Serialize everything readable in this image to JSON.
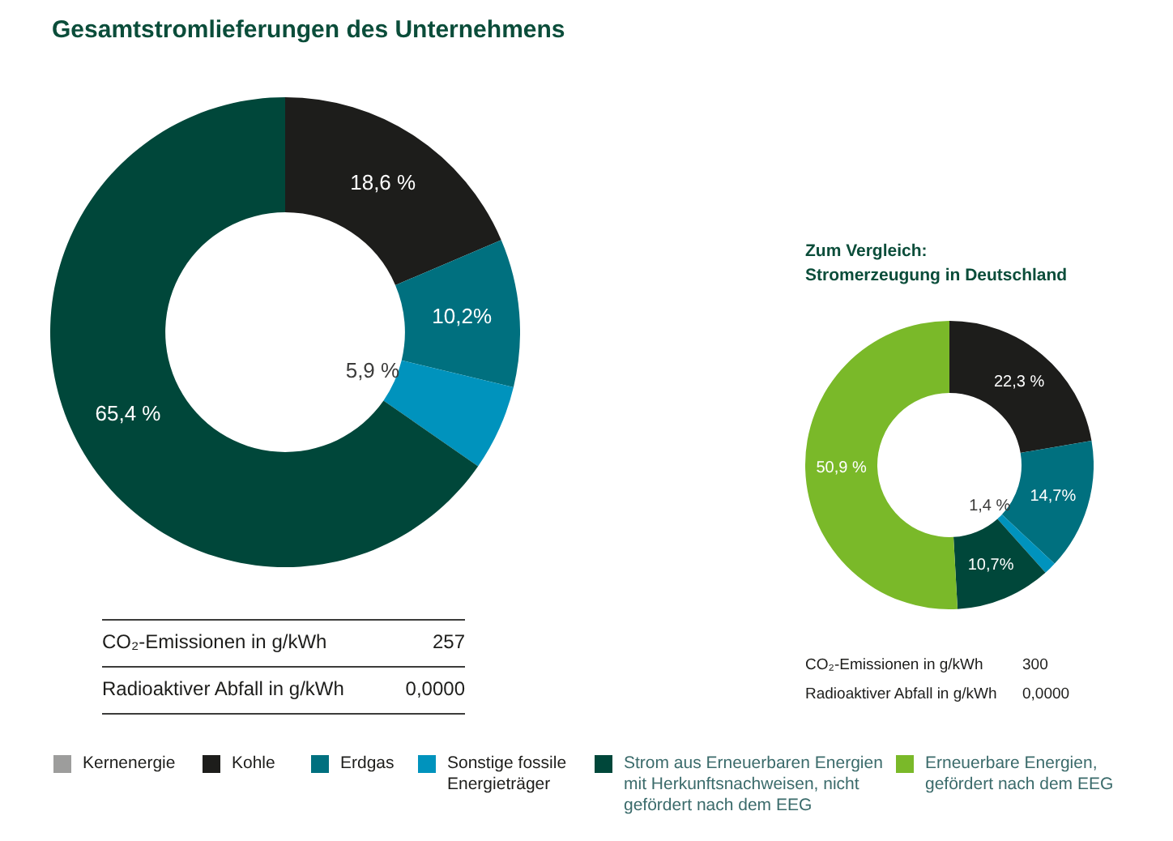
{
  "chart_data": [
    {
      "type": "donut",
      "title": "Gesamtstromlieferungen des Unternehmens",
      "categories": [
        "Kernenergie",
        "Kohle",
        "Erdgas",
        "Sonstige fossile Energieträger",
        "Strom aus Erneuerbaren Energien mit Herkunftsnachweisen, nicht gefördert nach dem EEG",
        "Erneuerbare Energien, gefördert nach dem EEG"
      ],
      "values": [
        0,
        18.6,
        10.2,
        5.9,
        65.4,
        0
      ],
      "colors": [
        "#9d9d9c",
        "#1d1d1b",
        "#00707f",
        "#0093bd",
        "#00473a",
        "#7ab929"
      ],
      "value_labels": [
        null,
        "18,6 %",
        "10,2%",
        "5,9 %",
        "65,4 %",
        null
      ],
      "annotations": [
        "CO₂-Emissionen in g/kWh",
        "257",
        "Radioaktiver Abfall in g/kWh",
        "0,0000"
      ],
      "legend": "bottom"
    },
    {
      "type": "donut",
      "title": "Zum Vergleich:",
      "subtitle": "Stromerzeugung in Deutschland",
      "categories": [
        null,
        null,
        null,
        null,
        null,
        null
      ],
      "values": [
        0,
        22.3,
        14.7,
        1.4,
        10.7,
        50.9
      ],
      "colors": [
        "#9d9d9c",
        "#1d1d1b",
        "#00707f",
        "#0093bd",
        "#00473a",
        "#7ab929"
      ],
      "value_labels": [
        null,
        "22,3 %",
        "14,7%",
        "1,4 %",
        "10,7%",
        "50,9 %"
      ],
      "annotations": [
        "CO₂-Emissionen in g/kWh",
        "300",
        "Radioaktiver Abfall in g/kWh",
        "0,0000"
      ]
    }
  ]
}
